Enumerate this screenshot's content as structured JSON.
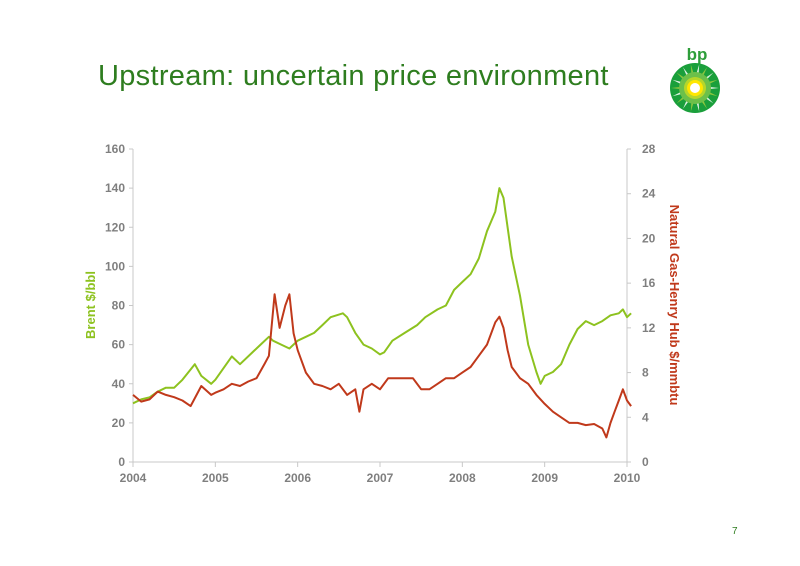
{
  "slide": {
    "title": "Upstream: uncertain price environment",
    "page_number": "7",
    "brand_text": "bp",
    "brand_color": "#2e9e3a",
    "title_color": "#2e7d1f"
  },
  "chart_data": {
    "type": "line",
    "title": "",
    "xlabel": "",
    "ylabel": "Brent $/bbl",
    "y2label": "Natural Gas-Henry Hub $/mmbtu",
    "xlim": [
      2004,
      2010
    ],
    "ylim": [
      0,
      160
    ],
    "y2lim": [
      0,
      28
    ],
    "x_ticks": [
      "2004",
      "2005",
      "2006",
      "2007",
      "2008",
      "2009",
      "2010"
    ],
    "y_ticks": [
      "0",
      "20",
      "40",
      "60",
      "80",
      "100",
      "120",
      "140",
      "160"
    ],
    "y2_ticks": [
      "0",
      "4",
      "8",
      "12",
      "16",
      "20",
      "24",
      "28"
    ],
    "grid": false,
    "series": [
      {
        "name": "Brent $/bbl",
        "axis": "left",
        "color": "#8dc21f",
        "x": [
          2004.0,
          2004.1,
          2004.2,
          2004.3,
          2004.4,
          2004.5,
          2004.6,
          2004.75,
          2004.83,
          2004.95,
          2005.0,
          2005.1,
          2005.2,
          2005.3,
          2005.45,
          2005.55,
          2005.65,
          2005.7,
          2005.8,
          2005.9,
          2006.0,
          2006.1,
          2006.2,
          2006.3,
          2006.4,
          2006.55,
          2006.6,
          2006.7,
          2006.8,
          2006.9,
          2007.0,
          2007.05,
          2007.15,
          2007.3,
          2007.45,
          2007.55,
          2007.7,
          2007.8,
          2007.9,
          2008.0,
          2008.1,
          2008.2,
          2008.3,
          2008.4,
          2008.45,
          2008.5,
          2008.55,
          2008.6,
          2008.7,
          2008.8,
          2008.9,
          2008.95,
          2009.0,
          2009.1,
          2009.2,
          2009.3,
          2009.4,
          2009.5,
          2009.6,
          2009.7,
          2009.8,
          2009.9,
          2009.95,
          2010.0,
          2010.05
        ],
        "y": [
          30,
          32,
          33,
          36,
          38,
          38,
          42,
          50,
          44,
          40,
          42,
          48,
          54,
          50,
          56,
          60,
          64,
          62,
          60,
          58,
          62,
          64,
          66,
          70,
          74,
          76,
          74,
          66,
          60,
          58,
          55,
          56,
          62,
          66,
          70,
          74,
          78,
          80,
          88,
          92,
          96,
          104,
          118,
          128,
          140,
          135,
          120,
          105,
          85,
          60,
          46,
          40,
          44,
          46,
          50,
          60,
          68,
          72,
          70,
          72,
          75,
          76,
          78,
          74,
          76
        ]
      },
      {
        "name": "Natural Gas-Henry Hub $/mmbtu",
        "axis": "right",
        "color": "#c0391b",
        "x": [
          2004.0,
          2004.1,
          2004.2,
          2004.3,
          2004.4,
          2004.5,
          2004.6,
          2004.7,
          2004.83,
          2004.95,
          2005.0,
          2005.1,
          2005.2,
          2005.3,
          2005.4,
          2005.5,
          2005.6,
          2005.65,
          2005.72,
          2005.78,
          2005.85,
          2005.9,
          2005.95,
          2006.0,
          2006.1,
          2006.2,
          2006.3,
          2006.4,
          2006.5,
          2006.6,
          2006.7,
          2006.75,
          2006.8,
          2006.9,
          2007.0,
          2007.1,
          2007.2,
          2007.3,
          2007.4,
          2007.5,
          2007.6,
          2007.7,
          2007.8,
          2007.9,
          2008.0,
          2008.1,
          2008.2,
          2008.3,
          2008.4,
          2008.45,
          2008.5,
          2008.55,
          2008.6,
          2008.7,
          2008.8,
          2008.9,
          2009.0,
          2009.1,
          2009.2,
          2009.3,
          2009.4,
          2009.5,
          2009.6,
          2009.7,
          2009.75,
          2009.8,
          2009.85,
          2009.9,
          2009.95,
          2010.0,
          2010.05
        ],
        "y": [
          6.0,
          5.4,
          5.6,
          6.3,
          6.0,
          5.8,
          5.5,
          5.0,
          6.8,
          6.0,
          6.2,
          6.5,
          7.0,
          6.8,
          7.2,
          7.5,
          8.8,
          9.5,
          15.0,
          12.0,
          14.0,
          15.0,
          11.5,
          10.0,
          8.0,
          7.0,
          6.8,
          6.5,
          7.0,
          6.0,
          6.5,
          4.5,
          6.5,
          7.0,
          6.5,
          7.5,
          7.5,
          7.5,
          7.5,
          6.5,
          6.5,
          7.0,
          7.5,
          7.5,
          8.0,
          8.5,
          9.5,
          10.5,
          12.5,
          13.0,
          12.0,
          10.0,
          8.5,
          7.5,
          7.0,
          6.0,
          5.2,
          4.5,
          4.0,
          3.5,
          3.5,
          3.3,
          3.4,
          3.0,
          2.2,
          3.5,
          4.5,
          5.5,
          6.5,
          5.5,
          5.0
        ]
      }
    ]
  }
}
